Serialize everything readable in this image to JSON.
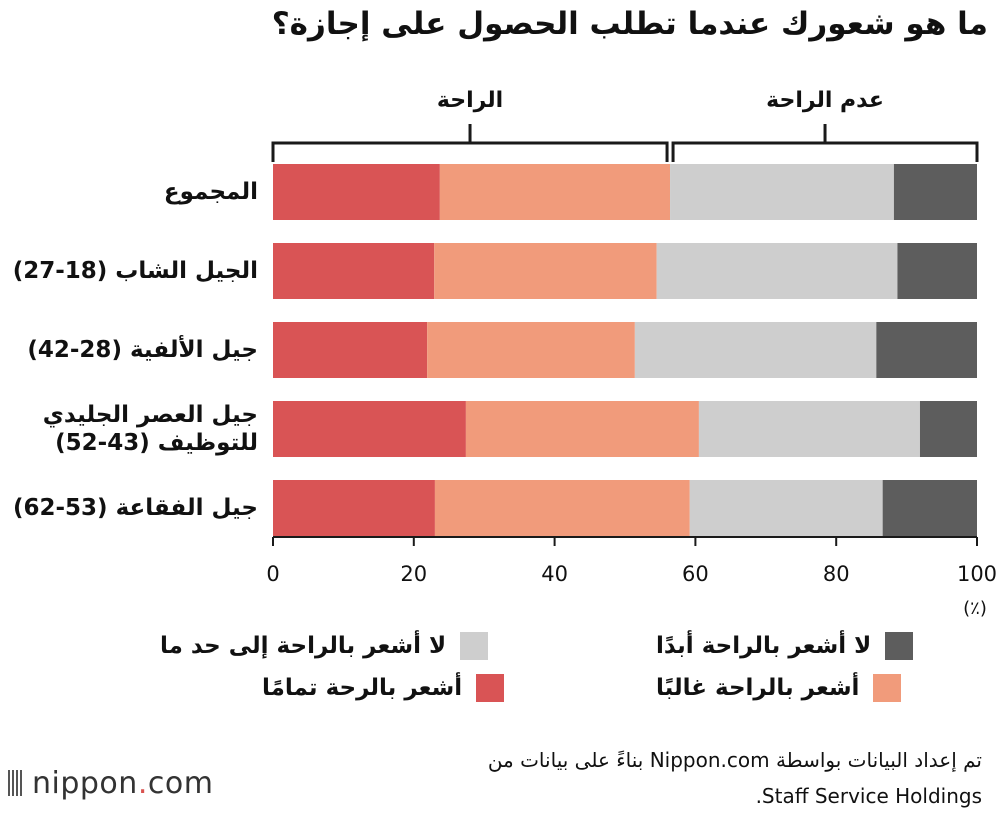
{
  "title": "ما هو شعورك عندما تطلب الحصول على إجازة؟",
  "groups": {
    "comfort": "الراحة",
    "discomfort": "عدم الراحة"
  },
  "unit_label": "(٪)",
  "source": {
    "line1": "تم إعداد البيانات بواسطة Nippon.com بناءً على بيانات من",
    "line2": "Staff Service Holdings."
  },
  "brand": {
    "name": "nippon",
    "dot": ".",
    "suffix": "com"
  },
  "colors": {
    "very_comfortable": "#d95455",
    "often_comfortable": "#f19b7b",
    "somewhat_uncomfortable": "#cecece",
    "never_comfortable": "#5d5d5d",
    "axis": "#1a1a1a"
  },
  "chart_data": {
    "type": "bar",
    "orientation": "horizontal",
    "stacked": true,
    "categories": [
      "المجموع",
      "الجيل الشاب (18-27)",
      "جيل الألفية (28-42)",
      "جيل العصر الجليدي للتوظيف (43-52)",
      "جيل الفقاعة (53-62)"
    ],
    "category_lines": [
      [
        "المجموع"
      ],
      [
        "الجيل الشاب (18-27)"
      ],
      [
        "جيل الألفية (28-42)"
      ],
      [
        "جيل العصر الجليدي",
        "للتوظيف (43-52)"
      ],
      [
        "جيل الفقاعة (53-62)"
      ]
    ],
    "series": [
      {
        "name": "أشعر بالرحة تمامًا",
        "color_key": "very_comfortable",
        "values": [
          23.7,
          22.9,
          21.9,
          27.4,
          23.0
        ]
      },
      {
        "name": "أشعر بالراحة غالبًا",
        "color_key": "often_comfortable",
        "values": [
          32.7,
          31.6,
          29.5,
          33.1,
          36.2
        ]
      },
      {
        "name": "لا أشعر بالراحة إلى حد ما",
        "color_key": "somewhat_uncomfortable",
        "values": [
          31.8,
          34.2,
          34.3,
          31.4,
          27.4
        ]
      },
      {
        "name": "لا أشعر بالراحة أبدًا",
        "color_key": "never_comfortable",
        "values": [
          11.8,
          11.3,
          14.3,
          8.1,
          13.4
        ]
      }
    ],
    "xlim": [
      0,
      100
    ],
    "xticks": [
      0,
      20,
      40,
      60,
      80,
      100
    ],
    "bracket_split": 56.4,
    "legend": "bottom"
  }
}
